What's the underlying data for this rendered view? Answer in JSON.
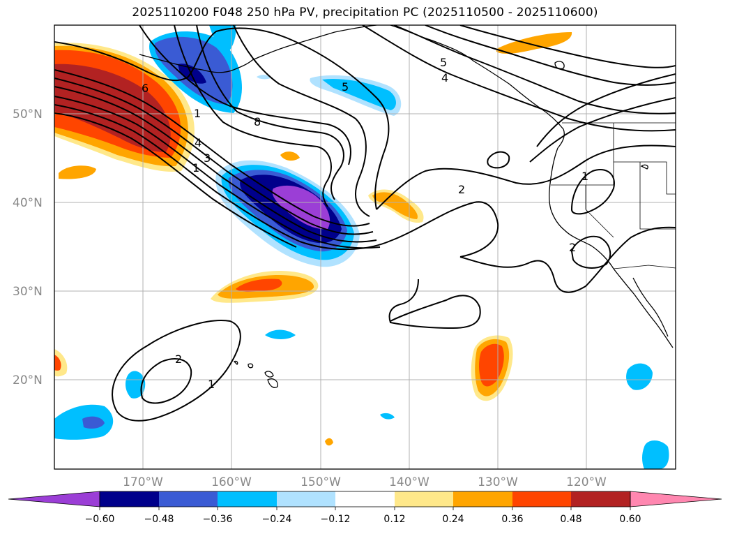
{
  "title": "2025110200 F048 250 hPa PV, precipitation PC (2025110500 - 2025110600)",
  "axes": {
    "lat_labels": [
      "50°N",
      "40°N",
      "30°N",
      "20°N"
    ],
    "lon_labels": [
      "170°W",
      "160°W",
      "150°W",
      "140°W",
      "130°W",
      "120°W"
    ]
  },
  "colorbar": {
    "colors": [
      "#9b3ed6",
      "#00008b",
      "#3a5bd4",
      "#00bfff",
      "#b0e2ff",
      "#ffffff",
      "#ffe88a",
      "#ffa500",
      "#ff4500",
      "#b22222",
      "#ff87b0"
    ],
    "labels": [
      "−0.60",
      "−0.48",
      "−0.36",
      "−0.24",
      "−0.12",
      "0.12",
      "0.24",
      "0.36",
      "0.48",
      "0.60"
    ]
  },
  "contour_labels": [
    "6",
    "1",
    "4",
    "3",
    "1",
    "8",
    "5",
    "5",
    "4",
    "2",
    "1",
    "2",
    "2",
    "1"
  ],
  "colors": {
    "negative_strong": "#00008b",
    "positive_strong": "#b22222",
    "grid": "#b0b0b0"
  }
}
